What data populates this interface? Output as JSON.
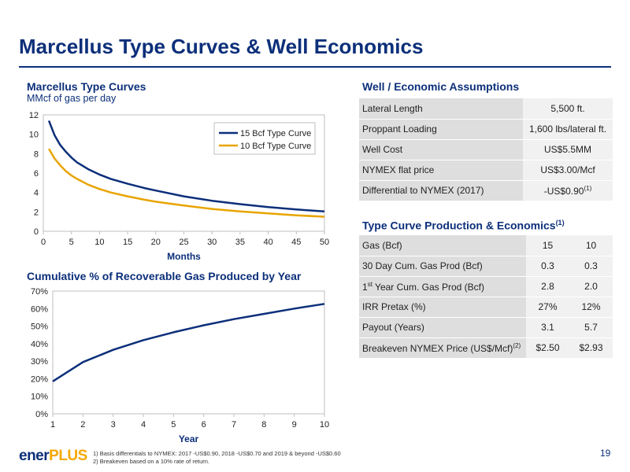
{
  "title": "Marcellus Type Curves & Well Economics",
  "chart_data": [
    {
      "type": "line",
      "title": "Marcellus Type Curves",
      "subtitle": "MMcf of gas per day",
      "xlabel": "Months",
      "ylabel": "",
      "xlim": [
        0,
        50
      ],
      "ylim": [
        0,
        12
      ],
      "xticks": [
        "0",
        "5",
        "10",
        "15",
        "20",
        "25",
        "30",
        "35",
        "40",
        "45",
        "50"
      ],
      "yticks": [
        "0",
        "2",
        "4",
        "6",
        "8",
        "10",
        "12"
      ],
      "legend": "top-right",
      "grid": false,
      "series": [
        {
          "name": "15 Bcf Type Curve",
          "color": "#0c2f7a",
          "x": [
            1,
            2,
            3,
            4,
            5,
            6,
            8,
            10,
            12,
            15,
            18,
            20,
            25,
            30,
            35,
            40,
            45,
            50
          ],
          "y": [
            11.4,
            9.9,
            8.9,
            8.2,
            7.6,
            7.1,
            6.4,
            5.85,
            5.4,
            4.9,
            4.45,
            4.2,
            3.6,
            3.15,
            2.8,
            2.5,
            2.25,
            2.05
          ]
        },
        {
          "name": "10 Bcf Type Curve",
          "color": "#e8a400",
          "x": [
            1,
            2,
            3,
            4,
            5,
            6,
            8,
            10,
            12,
            15,
            18,
            20,
            25,
            30,
            35,
            40,
            45,
            50
          ],
          "y": [
            8.5,
            7.5,
            6.8,
            6.2,
            5.75,
            5.4,
            4.8,
            4.35,
            4.0,
            3.6,
            3.25,
            3.05,
            2.65,
            2.3,
            2.05,
            1.85,
            1.65,
            1.5
          ]
        }
      ]
    },
    {
      "type": "line",
      "title": "Cumulative % of Recoverable Gas Produced by Year",
      "xlabel": "Year",
      "ylabel": "",
      "xlim": [
        1,
        10
      ],
      "ylim": [
        0,
        70
      ],
      "xticks": [
        "1",
        "2",
        "3",
        "4",
        "5",
        "6",
        "7",
        "8",
        "9",
        "10"
      ],
      "yticks": [
        "0%",
        "10%",
        "20%",
        "30%",
        "40%",
        "50%",
        "60%",
        "70%"
      ],
      "grid": false,
      "series": [
        {
          "color": "#0c2f7a",
          "x": [
            1,
            2,
            3,
            4,
            5,
            6,
            7,
            8,
            9,
            10
          ],
          "y": [
            18.5,
            29.5,
            36.5,
            42,
            46.5,
            50.5,
            54,
            57,
            60,
            62.7
          ]
        }
      ]
    }
  ],
  "assumptions": {
    "title": "Well / Economic Assumptions",
    "rows": [
      {
        "label": "Lateral Length",
        "value": "5,500 ft."
      },
      {
        "label": "Proppant Loading",
        "value": "1,600 lbs/lateral ft."
      },
      {
        "label": "Well Cost",
        "value": "US$5.5MM"
      },
      {
        "label": "NYMEX flat price",
        "value": "US$3.00/Mcf"
      },
      {
        "label": "Differential to NYMEX (2017)",
        "value": "-US$0.90",
        "value_sup": "(1)"
      }
    ]
  },
  "economics": {
    "title": "Type Curve Production & Economics",
    "title_sup": "(1)",
    "rows": [
      {
        "label": "Gas (Bcf)",
        "v1": "15",
        "v2": "10"
      },
      {
        "label": "30 Day Cum. Gas Prod (Bcf)",
        "v1": "0.3",
        "v2": "0.3"
      },
      {
        "label_pre": "1",
        "label_sup": "st",
        "label": " Year Cum. Gas Prod (Bcf)",
        "v1": "2.8",
        "v2": "2.0"
      },
      {
        "label": "IRR Pretax (%)",
        "v1": "27%",
        "v2": "12%"
      },
      {
        "label": "Payout (Years)",
        "v1": "3.1",
        "v2": "5.7"
      },
      {
        "label": "Breakeven NYMEX Price (US$/Mcf)",
        "label_sup": "(2)",
        "v1": "$2.50",
        "v2": "$2.93"
      }
    ]
  },
  "footer": {
    "logo_main": "ener",
    "logo_accent": "PLUS",
    "footnote_1": "1)   Basis differentials to NYMEX: 2017 -US$0.90, 2018 -US$0.70 and 2019 & beyond -US$0.60",
    "footnote_2": "2)   Breakeven based on a 10% rate of return.",
    "page_number": "19"
  }
}
